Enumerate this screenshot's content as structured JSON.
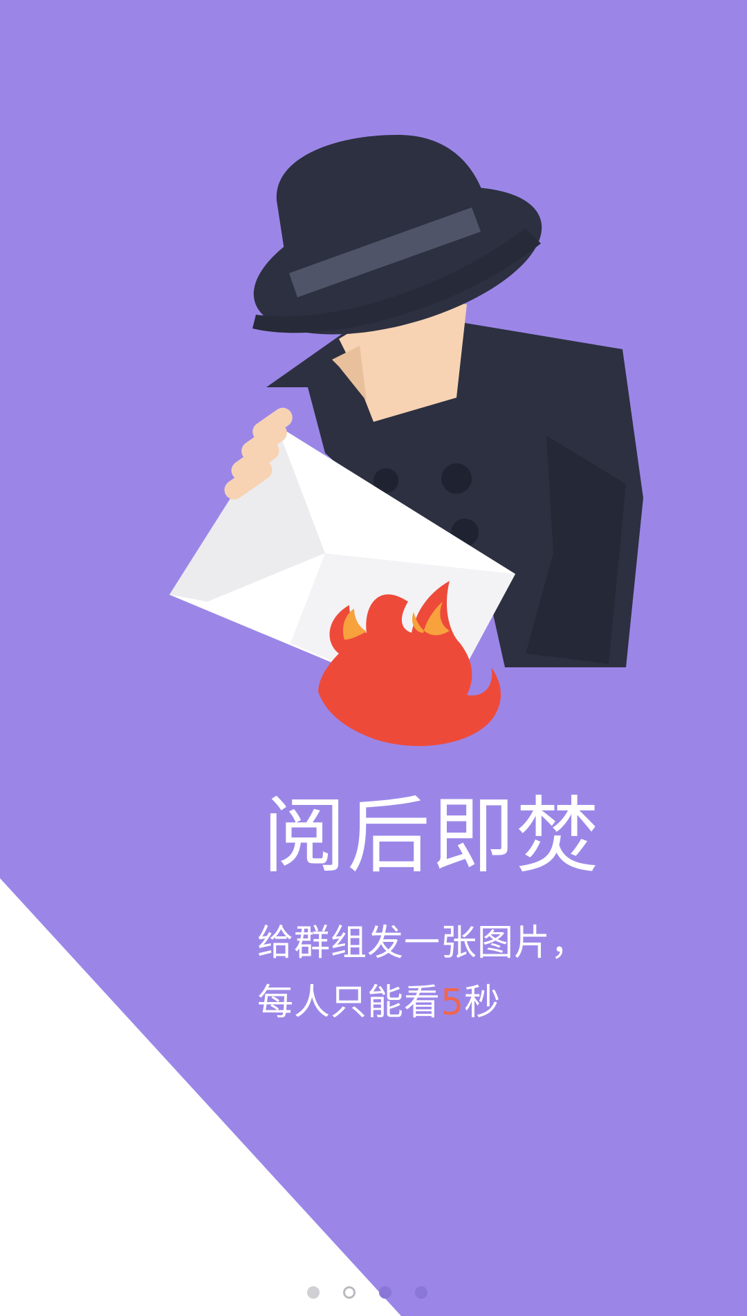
{
  "page": {
    "title": "阅后即焚",
    "line1": "给群组发一张图片，",
    "line2_prefix": "每人只能看",
    "line2_number": "5",
    "line2_suffix": "秒"
  },
  "pager": {
    "count": 4,
    "active_index": 1
  },
  "colors": {
    "background": "#9b86e8",
    "coat": "#2d3040",
    "hat_band": "#4f5468",
    "skin": "#f7d3b3",
    "envelope": "#ffffff",
    "flame": "#ee4a3a",
    "flame_inner": "#f7a23c",
    "accent_number": "#f0664d"
  },
  "icons": {
    "illustration": "spy-burning-letter-illustration",
    "flame": "flame-icon"
  }
}
